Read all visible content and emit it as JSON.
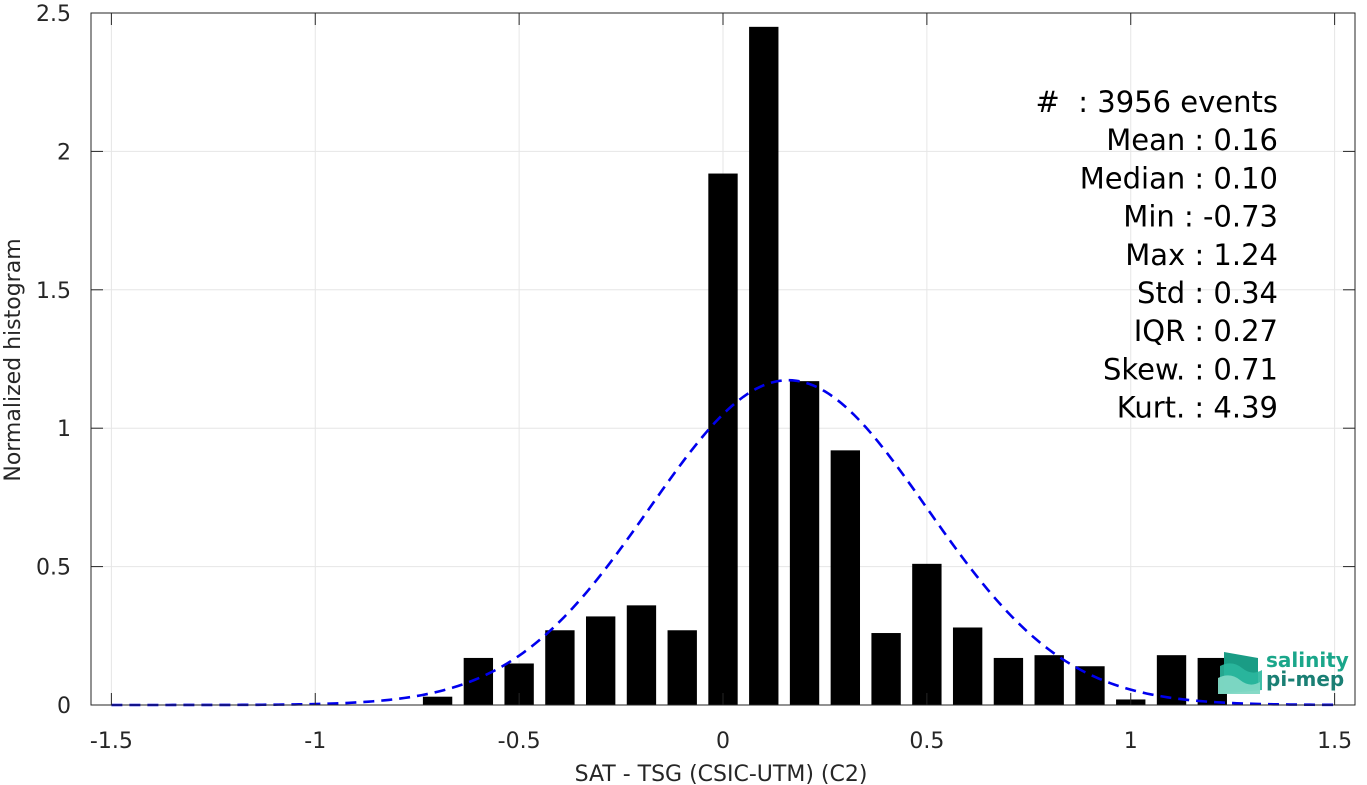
{
  "chart_data": {
    "type": "bar",
    "xlabel": "SAT - TSG (CSIC-UTM) (C2)",
    "ylabel": "Normalized histogram",
    "xlim": [
      -1.55,
      1.55
    ],
    "ylim": [
      0,
      2.5
    ],
    "xticks": [
      -1.5,
      -1,
      -0.5,
      0,
      0.5,
      1,
      1.5
    ],
    "xtick_labels": [
      "-1.5",
      "-1",
      "-0.5",
      "0",
      "0.5",
      "1",
      "1.5"
    ],
    "yticks": [
      0,
      0.5,
      1,
      1.5,
      2,
      2.5
    ],
    "ytick_labels": [
      "0",
      "0.5",
      "1",
      "1.5",
      "2",
      "2.5"
    ],
    "grid": true,
    "bar_color": "#000000",
    "fit_color": "#0000ee",
    "bins": [
      {
        "x": -0.7,
        "value": 0.03
      },
      {
        "x": -0.6,
        "value": 0.17
      },
      {
        "x": -0.5,
        "value": 0.15
      },
      {
        "x": -0.4,
        "value": 0.27
      },
      {
        "x": -0.3,
        "value": 0.32
      },
      {
        "x": -0.2,
        "value": 0.36
      },
      {
        "x": -0.1,
        "value": 0.27
      },
      {
        "x": 0.0,
        "value": 1.92
      },
      {
        "x": 0.1,
        "value": 2.45
      },
      {
        "x": 0.2,
        "value": 1.17
      },
      {
        "x": 0.3,
        "value": 0.92
      },
      {
        "x": 0.4,
        "value": 0.26
      },
      {
        "x": 0.5,
        "value": 0.51
      },
      {
        "x": 0.6,
        "value": 0.28
      },
      {
        "x": 0.7,
        "value": 0.17
      },
      {
        "x": 0.8,
        "value": 0.18
      },
      {
        "x": 0.9,
        "value": 0.14
      },
      {
        "x": 1.0,
        "value": 0.02
      },
      {
        "x": 1.1,
        "value": 0.18
      },
      {
        "x": 1.2,
        "value": 0.17
      }
    ],
    "bin_width": 0.1,
    "fit": {
      "type": "gaussian",
      "mean": 0.16,
      "std": 0.34,
      "x_range": [
        -1.5,
        1.5
      ],
      "linestyle": "dashed"
    },
    "stats": [
      "#  : 3956 events",
      "Mean : 0.16",
      "Median : 0.10",
      "Min : -0.73",
      "Max : 1.24",
      "Std : 0.34",
      "IQR : 0.27",
      "Skew. : 0.71",
      "Kurt. : 4.39"
    ]
  },
  "logo": {
    "line1": "salinity",
    "line2": "pi-mep"
  }
}
